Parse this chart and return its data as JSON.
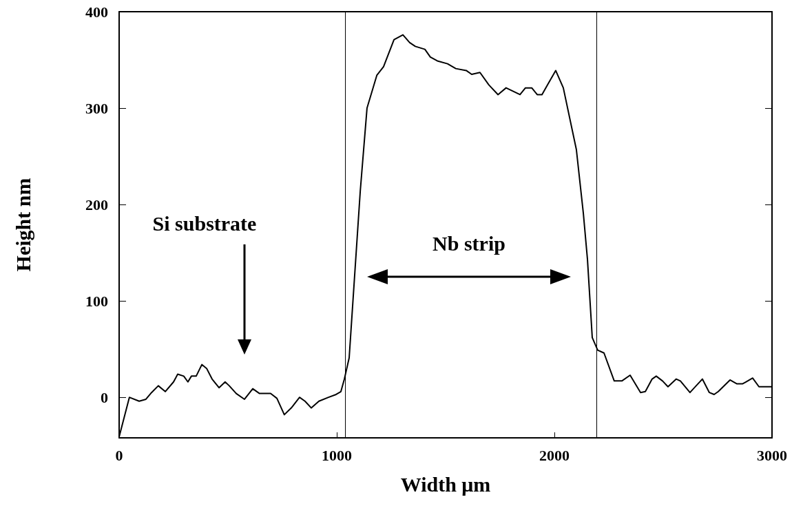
{
  "chart_data": {
    "type": "line",
    "xlabel": "Width μm",
    "ylabel": "Height nm",
    "xlim": [
      0,
      3000
    ],
    "xticks": [
      0,
      1000,
      2000,
      3000
    ],
    "ylim": [
      -42,
      400
    ],
    "yticks": [
      0,
      100,
      200,
      300,
      400
    ],
    "grid": false,
    "marker": "none",
    "line_style": "solid",
    "ref_lines": [
      {
        "axis": "x",
        "value": 1040,
        "color": "#000000"
      },
      {
        "axis": "x",
        "value": 2195,
        "color": "#000000"
      }
    ],
    "annotations": [
      "Si substrate",
      "Nb strip"
    ],
    "series": [
      {
        "color": "#000000",
        "x": [
          0,
          47,
          92,
          123,
          149,
          180,
          212,
          250,
          269,
          297,
          316,
          332,
          354,
          380,
          402,
          427,
          459,
          487,
          506,
          538,
          576,
          614,
          645,
          696,
          725,
          759,
          791,
          829,
          854,
          883,
          918,
          962,
          997,
          1019,
          1035,
          1057,
          1108,
          1139,
          1184,
          1215,
          1263,
          1304,
          1335,
          1361,
          1405,
          1430,
          1462,
          1509,
          1547,
          1595,
          1620,
          1658,
          1699,
          1741,
          1778,
          1842,
          1867,
          1896,
          1921,
          1943,
          1968,
          2006,
          2041,
          2101,
          2133,
          2152,
          2174,
          2199,
          2228,
          2275,
          2310,
          2348,
          2396,
          2418,
          2449,
          2468,
          2497,
          2522,
          2560,
          2579,
          2623,
          2680,
          2712,
          2734,
          2753,
          2807,
          2839,
          2864,
          2880,
          2911,
          2940,
          2991,
          3000
        ],
        "values": [
          -41,
          0,
          -4,
          -2,
          5,
          12,
          6,
          16,
          24,
          22,
          16,
          22,
          22,
          34,
          30,
          19,
          10,
          16,
          12,
          4,
          -2,
          9,
          4,
          4,
          -1,
          -18,
          -11,
          0,
          -4,
          -11,
          -4,
          0,
          3,
          6,
          19,
          41,
          214,
          300,
          334,
          343,
          371,
          376,
          368,
          364,
          361,
          353,
          349,
          346,
          341,
          339,
          335,
          337,
          324,
          314,
          321,
          314,
          321,
          321,
          314,
          314,
          324,
          339,
          321,
          257,
          191,
          143,
          62,
          49,
          46,
          17,
          17,
          23,
          5,
          6,
          19,
          22,
          17,
          11,
          19,
          17,
          5,
          19,
          5,
          3,
          6,
          18,
          14,
          14,
          16,
          20,
          11,
          11,
          11
        ]
      }
    ]
  }
}
